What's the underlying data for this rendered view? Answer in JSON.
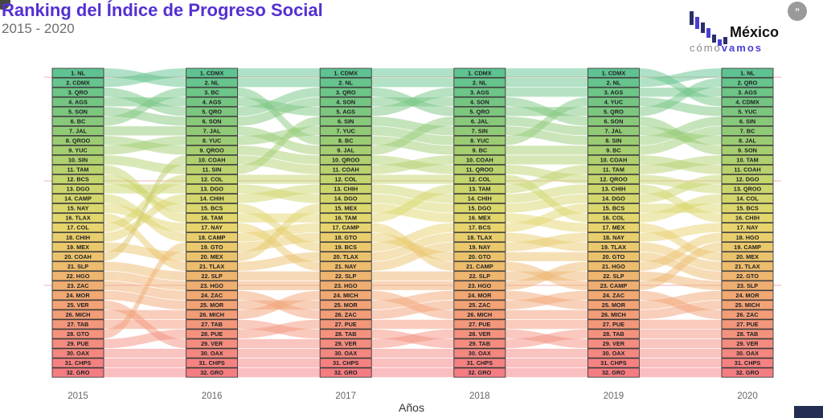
{
  "title": "Ranking del Índice de Progreso Social",
  "subtitle": "2015 - 2020",
  "x_axis_title": "Años",
  "header_logo": {
    "brand_top": "México",
    "brand_bottom_gray": "cómo",
    "brand_bottom_purple": "vamos",
    "badge_glyph": "”"
  },
  "colors": {
    "title": "#5430d2",
    "subtitle": "#6e6e6e",
    "box_border": "#3c3c3c",
    "box_text": "#1f1f1f",
    "tick_text": "#666666",
    "axis_title_text": "#333333",
    "gridline": "#f5bcbc",
    "logo_purple": "#4a3fd0",
    "logo_navy": "#2b2e6b",
    "footer_bar": "#232e52",
    "badge_gray": "#9a9a9a",
    "rank_scale": [
      "#5ec391",
      "#7cc67e",
      "#a2cd70",
      "#c9d66c",
      "#e6d76d",
      "#ecc06c",
      "#f1a673",
      "#f4917e",
      "#f57d82"
    ],
    "ribbon_opacity": 0.5
  },
  "chart_data": {
    "type": "bump",
    "title": "Ranking del Índice de Progreso Social 2015 - 2020",
    "x": [
      "2015",
      "2016",
      "2017",
      "2018",
      "2019",
      "2020"
    ],
    "xlabel": "Años",
    "n_ranks": 32,
    "rank_label_format": "{rank}. {state}",
    "legend": "none",
    "grid": "faint pink horizontal lines",
    "ranks_per_year": {
      "2015": [
        "NL",
        "CDMX",
        "QRO",
        "AGS",
        "SON",
        "BC",
        "JAL",
        "QROO",
        "YUC",
        "SIN",
        "TAM",
        "BCS",
        "DGO",
        "CAMP",
        "NAY",
        "TLAX",
        "COL",
        "CHIH",
        "MEX",
        "COAH",
        "SLP",
        "HGO",
        "ZAC",
        "MOR",
        "VER",
        "MICH",
        "TAB",
        "GTO",
        "PUE",
        "OAX",
        "CHPS",
        "GRO"
      ],
      "2016": [
        "CDMX",
        "NL",
        "BC",
        "AGS",
        "QRO",
        "SON",
        "JAL",
        "YUC",
        "QROO",
        "COAH",
        "SIN",
        "COL",
        "DGO",
        "CHIH",
        "BCS",
        "TAM",
        "NAY",
        "CAMP",
        "GTO",
        "MEX",
        "TLAX",
        "SLP",
        "HGO",
        "ZAC",
        "MOR",
        "MICH",
        "TAB",
        "PUE",
        "VER",
        "OAX",
        "CHPS",
        "GRO"
      ],
      "2017": [
        "CDMX",
        "NL",
        "QRO",
        "SON",
        "AGS",
        "SIN",
        "YUC",
        "BC",
        "JAL",
        "QROO",
        "COAH",
        "COL",
        "CHIH",
        "DGO",
        "MEX",
        "TAM",
        "CAMP",
        "GTO",
        "BCS",
        "TLAX",
        "NAY",
        "SLP",
        "HGO",
        "MICH",
        "MOR",
        "ZAC",
        "PUE",
        "TAB",
        "VER",
        "OAX",
        "CHPS",
        "GRO"
      ],
      "2018": [
        "CDMX",
        "NL",
        "AGS",
        "SON",
        "QRO",
        "JAL",
        "SIN",
        "YUC",
        "BC",
        "COAH",
        "QROO",
        "COL",
        "TAM",
        "CHIH",
        "DGO",
        "MEX",
        "BCS",
        "TLAX",
        "NAY",
        "GTO",
        "CAMP",
        "SLP",
        "HGO",
        "MOR",
        "ZAC",
        "MICH",
        "PUE",
        "VER",
        "TAB",
        "OAX",
        "CHPS",
        "GRO"
      ],
      "2019": [
        "CDMX",
        "NL",
        "AGS",
        "YUC",
        "QRO",
        "SON",
        "JAL",
        "SIN",
        "BC",
        "COAH",
        "TAM",
        "QROO",
        "CHIH",
        "DGO",
        "BCS",
        "COL",
        "MEX",
        "NAY",
        "TLAX",
        "GTO",
        "HGO",
        "SLP",
        "CAMP",
        "ZAC",
        "MOR",
        "MICH",
        "PUE",
        "TAB",
        "VER",
        "OAX",
        "CHPS",
        "GRO"
      ],
      "2020": [
        "NL",
        "QRO",
        "AGS",
        "CDMX",
        "YUC",
        "SIN",
        "BC",
        "JAL",
        "SON",
        "TAM",
        "COAH",
        "DGO",
        "QROO",
        "COL",
        "BCS",
        "CHIH",
        "NAY",
        "HGO",
        "CAMP",
        "MEX",
        "TLAX",
        "GTO",
        "SLP",
        "MOR",
        "MICH",
        "ZAC",
        "PUE",
        "TAB",
        "VER",
        "OAX",
        "CHPS",
        "GRO"
      ]
    }
  }
}
